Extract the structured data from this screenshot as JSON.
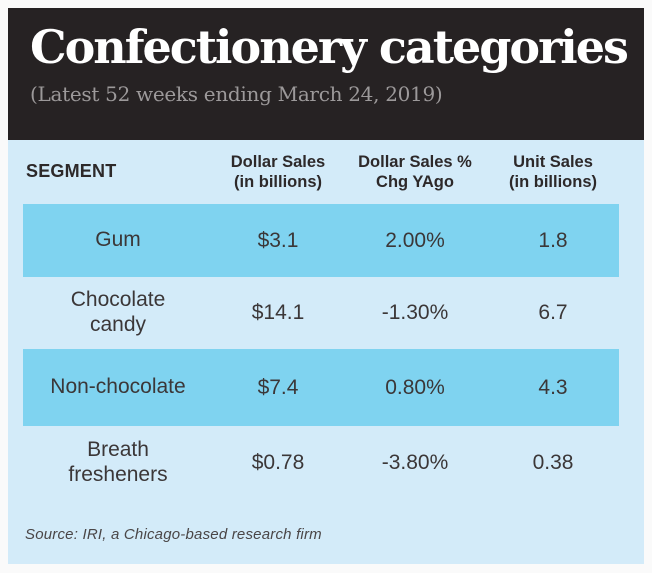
{
  "header": {
    "title": "Confectionery categories",
    "subtitle": "(Latest 52 weeks ending March 24, 2019)"
  },
  "table": {
    "columns": [
      {
        "label": "SEGMENT",
        "sub": ""
      },
      {
        "label": "Dollar Sales",
        "sub": "(in billions)"
      },
      {
        "label": "Dollar Sales %",
        "sub": "Chg YAgo"
      },
      {
        "label": "Unit Sales",
        "sub": "(in billions)"
      }
    ],
    "rows": [
      {
        "highlight": true,
        "cells": [
          "Gum",
          "$3.1",
          "2.00%",
          "1.8"
        ]
      },
      {
        "highlight": false,
        "cells": [
          "Chocolate\ncandy",
          "$14.1",
          "-1.30%",
          "6.7"
        ]
      },
      {
        "highlight": true,
        "cells": [
          "Non-chocolate",
          "$7.4",
          "0.80%",
          "4.3"
        ]
      },
      {
        "highlight": false,
        "cells": [
          "Breath\nfresheners",
          "$0.78",
          "-3.80%",
          "0.38"
        ]
      }
    ]
  },
  "source": "Source: IRI, a Chicago-based research firm",
  "colors": {
    "masthead_bg": "#262223",
    "title_text": "#ffffff",
    "subtitle_text": "#9c999a",
    "table_bg": "#d3ebf9",
    "row_highlight": "#7fd3f0",
    "body_text": "#3b3738",
    "page_bg": "#fafafa"
  },
  "chart_data": {
    "type": "table",
    "title": "Confectionery categories",
    "subtitle": "(Latest 52 weeks ending March 24, 2019)",
    "columns": [
      "SEGMENT",
      "Dollar Sales (in billions)",
      "Dollar Sales % Chg YAgo",
      "Unit Sales (in billions)"
    ],
    "rows": [
      [
        "Gum",
        3.1,
        2.0,
        1.8
      ],
      [
        "Chocolate candy",
        14.1,
        -1.3,
        6.7
      ],
      [
        "Non-chocolate",
        7.4,
        0.8,
        4.3
      ],
      [
        "Breath fresheners",
        0.78,
        -3.8,
        0.38
      ]
    ],
    "source": "Source: IRI, a Chicago-based research firm"
  }
}
